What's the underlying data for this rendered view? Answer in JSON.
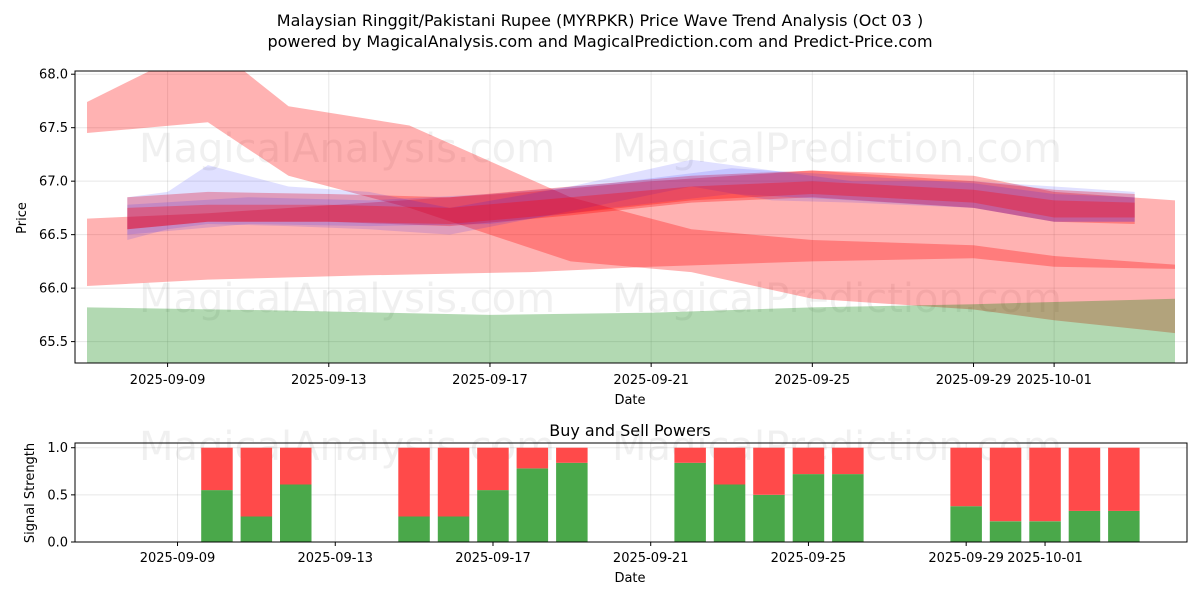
{
  "title": "Malaysian Ringgit/Pakistani Rupee (MYRPKR) Price Wave Trend Analysis (Oct 03 )",
  "subtitle": "powered by MagicalAnalysis.com and MagicalPrediction.com and Predict-Price.com",
  "watermarks": [
    "MagicalAnalysis.com",
    "MagicalPrediction.com"
  ],
  "colors": {
    "red": "#ff0000",
    "blue": "#0000ff",
    "green": "#008000",
    "buy": "#4aa84a",
    "sell": "#ff4a4a"
  },
  "chart_data": [
    {
      "type": "area",
      "xlabel": "Date",
      "ylabel": "Price",
      "x_ticks": [
        "2025-09-09",
        "2025-09-13",
        "2025-09-17",
        "2025-09-21",
        "2025-09-25",
        "2025-09-29",
        "2025-10-01"
      ],
      "y_ticks": [
        "65.5",
        "66.0",
        "66.5",
        "67.0",
        "67.5",
        "68.0"
      ],
      "xlim": [
        "2025-09-07",
        "2025-10-04"
      ],
      "ylim": [
        65.3,
        68.03
      ],
      "grid": true,
      "bands": [
        {
          "color": "red",
          "x": [
            "2025-09-07",
            "2025-09-10",
            "2025-09-12",
            "2025-09-15",
            "2025-09-19",
            "2025-09-22",
            "2025-09-25",
            "2025-09-29",
            "2025-10-01",
            "2025-10-04"
          ],
          "upper": [
            67.74,
            68.3,
            67.7,
            67.52,
            66.85,
            66.55,
            66.45,
            66.4,
            66.3,
            66.22
          ],
          "lower": [
            67.45,
            67.55,
            67.05,
            66.75,
            66.25,
            66.15,
            65.9,
            65.8,
            65.7,
            65.58
          ]
        },
        {
          "color": "red",
          "x": [
            "2025-09-07",
            "2025-09-10",
            "2025-09-14",
            "2025-09-18",
            "2025-09-21",
            "2025-09-25",
            "2025-09-29",
            "2025-10-01",
            "2025-10-04"
          ],
          "upper": [
            66.65,
            66.7,
            66.8,
            66.9,
            67.0,
            67.1,
            67.05,
            66.9,
            66.82
          ],
          "lower": [
            66.02,
            66.08,
            66.12,
            66.15,
            66.2,
            66.25,
            66.28,
            66.2,
            66.18
          ]
        },
        {
          "color": "red",
          "x": [
            "2025-09-08",
            "2025-09-10",
            "2025-09-13",
            "2025-09-16",
            "2025-09-19",
            "2025-09-22",
            "2025-09-25",
            "2025-09-29",
            "2025-10-01",
            "2025-10-03"
          ],
          "upper": [
            66.85,
            66.9,
            66.88,
            66.85,
            66.95,
            67.05,
            67.1,
            67.0,
            66.92,
            66.88
          ],
          "lower": [
            66.55,
            66.62,
            66.62,
            66.58,
            66.68,
            66.8,
            66.85,
            66.75,
            66.62,
            66.6
          ]
        },
        {
          "color": "blue",
          "x": [
            "2025-09-08",
            "2025-09-09",
            "2025-09-10",
            "2025-09-12",
            "2025-09-14",
            "2025-09-16",
            "2025-09-19",
            "2025-09-22",
            "2025-09-24",
            "2025-09-26",
            "2025-09-29",
            "2025-10-01",
            "2025-10-03"
          ],
          "upper": [
            66.85,
            66.9,
            67.15,
            66.95,
            66.9,
            66.75,
            66.95,
            67.2,
            67.1,
            67.0,
            67.0,
            66.95,
            66.9
          ],
          "lower": [
            66.45,
            66.55,
            66.6,
            66.58,
            66.55,
            66.5,
            66.72,
            66.95,
            66.82,
            66.8,
            66.75,
            66.62,
            66.62
          ]
        },
        {
          "color": "blue",
          "x": [
            "2025-09-08",
            "2025-09-11",
            "2025-09-14",
            "2025-09-17",
            "2025-09-20",
            "2025-09-23",
            "2025-09-26",
            "2025-09-29",
            "2025-10-01",
            "2025-10-03"
          ],
          "upper": [
            66.78,
            66.85,
            66.82,
            66.88,
            66.98,
            67.12,
            67.05,
            66.98,
            66.88,
            66.85
          ],
          "lower": [
            66.5,
            66.6,
            66.58,
            66.6,
            66.75,
            66.88,
            66.82,
            66.75,
            66.62,
            66.62
          ]
        },
        {
          "color": "red",
          "x": [
            "2025-09-08",
            "2025-09-10",
            "2025-09-13",
            "2025-09-16",
            "2025-09-19",
            "2025-09-22",
            "2025-09-25",
            "2025-09-29",
            "2025-10-01",
            "2025-10-03"
          ],
          "upper": [
            66.75,
            66.78,
            66.78,
            66.75,
            66.85,
            66.95,
            67.0,
            66.92,
            66.82,
            66.8
          ],
          "lower": [
            66.55,
            66.62,
            66.62,
            66.6,
            66.7,
            66.82,
            66.88,
            66.8,
            66.66,
            66.66
          ]
        },
        {
          "color": "green",
          "x": [
            "2025-09-07",
            "2025-09-12",
            "2025-09-17",
            "2025-09-21",
            "2025-09-25",
            "2025-09-29",
            "2025-10-01",
            "2025-10-04"
          ],
          "upper": [
            65.82,
            65.79,
            65.75,
            65.77,
            65.82,
            65.85,
            65.87,
            65.9
          ],
          "lower": [
            65.3,
            65.3,
            65.3,
            65.3,
            65.3,
            65.3,
            65.3,
            65.3
          ]
        }
      ]
    },
    {
      "type": "bar",
      "title": "Buy and Sell Powers",
      "xlabel": "Date",
      "ylabel": "Signal Strength",
      "x_ticks": [
        "2025-09-09",
        "2025-09-13",
        "2025-09-17",
        "2025-09-21",
        "2025-09-25",
        "2025-09-29",
        "2025-10-01"
      ],
      "y_ticks": [
        "0.0",
        "0.5",
        "1.0"
      ],
      "ylim": [
        0,
        1.05
      ],
      "grid": true,
      "stacked": true,
      "categories": [
        "2025-09-10",
        "2025-09-11",
        "2025-09-12",
        "2025-09-15",
        "2025-09-16",
        "2025-09-17",
        "2025-09-18",
        "2025-09-19",
        "2025-09-22",
        "2025-09-23",
        "2025-09-24",
        "2025-09-25",
        "2025-09-26",
        "2025-09-29",
        "2025-09-30",
        "2025-10-01",
        "2025-10-02",
        "2025-10-03"
      ],
      "series": [
        {
          "color": "buy",
          "values": [
            0.55,
            0.27,
            0.61,
            0.27,
            0.27,
            0.55,
            0.78,
            0.84,
            0.84,
            0.61,
            0.5,
            0.72,
            0.72,
            0.38,
            0.22,
            0.22,
            0.33,
            0.33
          ]
        },
        {
          "color": "sell",
          "values": [
            0.45,
            0.73,
            0.39,
            0.73,
            0.73,
            0.45,
            0.22,
            0.16,
            0.16,
            0.39,
            0.5,
            0.28,
            0.28,
            0.62,
            0.78,
            0.78,
            0.67,
            0.67
          ]
        }
      ]
    }
  ]
}
